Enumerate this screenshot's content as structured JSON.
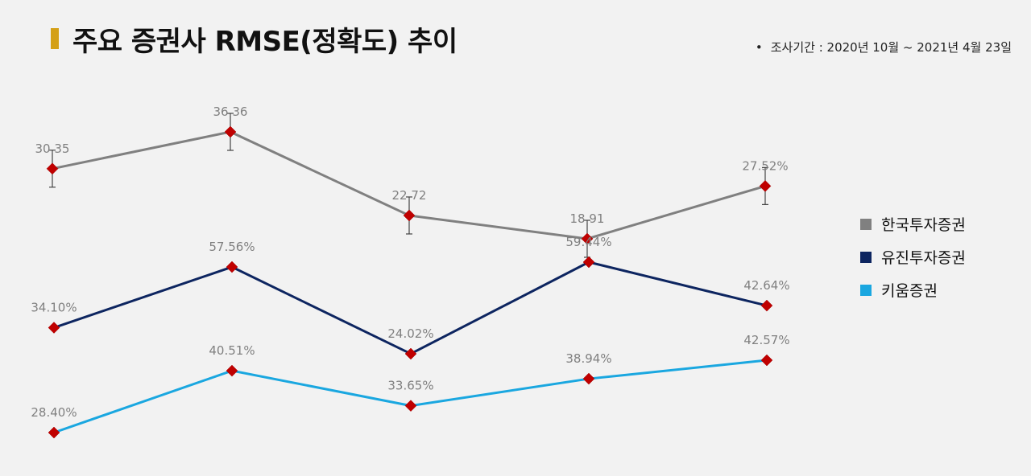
{
  "header": {
    "title": "주요 증권사 RMSE(정확도) 추이",
    "period_bullet": "•",
    "period": "조사기간 : 2020년 10월 ~ 2021년 4월 23일"
  },
  "colors": {
    "title_accent": "#d4a017",
    "marker": "#c00000",
    "error_bar": "#444444",
    "label": "#808080"
  },
  "chart_data": {
    "type": "line",
    "x": [
      1,
      2,
      3,
      4,
      5
    ],
    "series": [
      {
        "name": "한국투자증권",
        "color": "#808080",
        "values": [
          30.35,
          36.36,
          22.72,
          18.91,
          27.52
        ],
        "labels": [
          "30.35",
          "36.36",
          "22.72",
          "18.91",
          "27.52%"
        ],
        "error_bars": true
      },
      {
        "name": "유진투자증권",
        "color": "#0d2560",
        "values": [
          34.1,
          57.56,
          24.02,
          59.44,
          42.64
        ],
        "labels": [
          "34.10%",
          "57.56%",
          "24.02%",
          "59.44%",
          "42.64%"
        ],
        "error_bars": false
      },
      {
        "name": "키움증권",
        "color": "#1aa7e0",
        "values": [
          28.4,
          40.51,
          33.65,
          38.94,
          42.57
        ],
        "labels": [
          "28.40%",
          "40.51%",
          "33.65%",
          "38.94%",
          "42.57%"
        ],
        "error_bars": false
      }
    ],
    "legend_position": "right",
    "grid": false
  }
}
